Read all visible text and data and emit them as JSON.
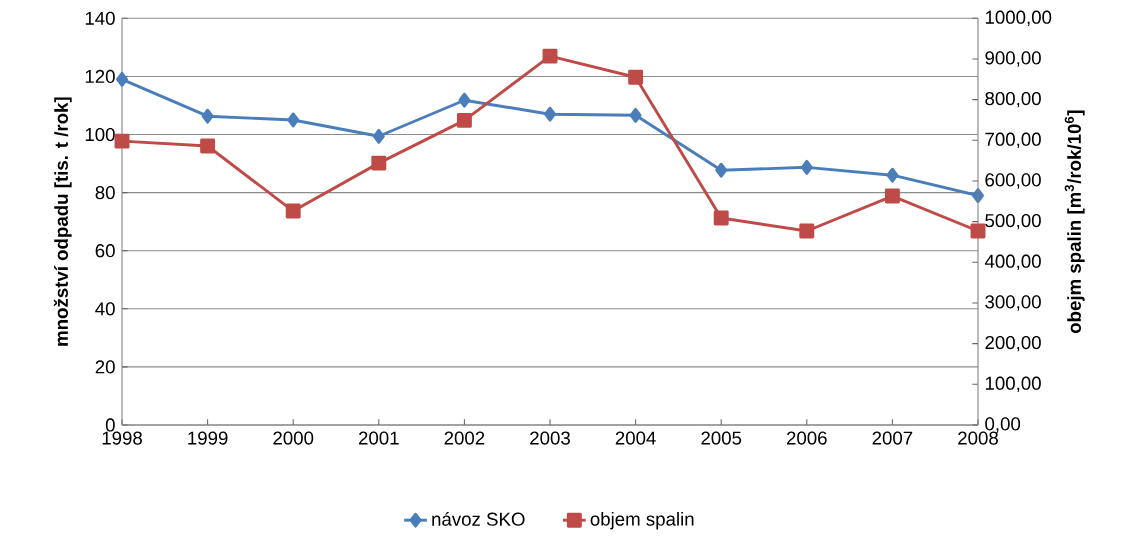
{
  "chart_data": {
    "type": "line",
    "categories": [
      "1998",
      "1999",
      "2000",
      "2001",
      "2002",
      "2003",
      "2004",
      "2005",
      "2006",
      "2007",
      "2008"
    ],
    "ylabel": "množství odpadu [tis. t /rok]",
    "y2label": "obejm spalin [m$^{3}$/rok/10$^{6}$]",
    "series": [
      {
        "name": "návoz SKO",
        "color": "#4a7ebb",
        "marker": "diamond",
        "values": [
          119,
          106.3,
          105,
          99.4,
          111.8,
          107,
          106.6,
          87.7,
          88.7,
          86,
          79
        ]
      },
      {
        "name": "objem spalin",
        "color": "#be4b48",
        "marker": "square",
        "axis": "y2",
        "values": [
          698,
          686,
          526,
          644,
          749,
          907,
          855,
          509,
          477,
          563,
          477
        ]
      }
    ],
    "ylim": [
      0,
      140
    ],
    "yticks": [
      0,
      20,
      40,
      60,
      80,
      100,
      120,
      140
    ],
    "y2lim": [
      0,
      1000
    ],
    "y2ticks": [
      {
        "value": 0,
        "label": "0,00"
      },
      {
        "value": 100,
        "label": "100,00"
      },
      {
        "value": 200,
        "label": "200,00"
      },
      {
        "value": 300,
        "label": "300,00"
      },
      {
        "value": 400,
        "label": "400,00"
      },
      {
        "value": 500,
        "label": "500,00"
      },
      {
        "value": 600,
        "label": "600,00"
      },
      {
        "value": 700,
        "label": "700,00"
      },
      {
        "value": 800,
        "label": "800,00"
      },
      {
        "value": 900,
        "label": "900,00"
      },
      {
        "value": 1000,
        "label": "1000,00"
      }
    ],
    "grid": "y",
    "legend": "bottom",
    "line_style": "solid"
  }
}
